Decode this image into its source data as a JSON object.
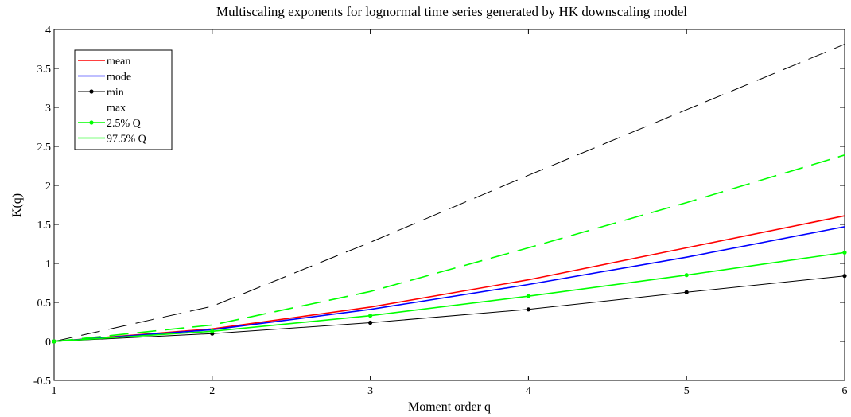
{
  "chart_data": {
    "type": "line",
    "title": "Multiscaling exponents for lognormal time series generated by HK downscaling model",
    "xlabel": "Moment order q",
    "ylabel": "K(q)",
    "xlim": [
      1,
      6
    ],
    "ylim": [
      -0.5,
      4
    ],
    "xticks": [
      "1",
      "2",
      "3",
      "4",
      "5",
      "6"
    ],
    "yticks": [
      "-0.5",
      "0",
      "0.5",
      "1",
      "1.5",
      "2",
      "2.5",
      "3",
      "3.5",
      "4"
    ],
    "grid": false,
    "legend_position": "top-left",
    "x": [
      1,
      2,
      3,
      4,
      5,
      6
    ],
    "series": [
      {
        "name": "mean",
        "values": [
          0,
          0.16,
          0.44,
          0.79,
          1.2,
          1.61
        ],
        "color": "#ff0000",
        "style": "solid",
        "marker": "none"
      },
      {
        "name": "mode",
        "values": [
          0,
          0.15,
          0.41,
          0.73,
          1.08,
          1.47
        ],
        "color": "#0000ff",
        "style": "solid",
        "marker": "none"
      },
      {
        "name": "min",
        "values": [
          0,
          0.1,
          0.24,
          0.41,
          0.63,
          0.84
        ],
        "color": "#000000",
        "style": "solid",
        "marker": "dot"
      },
      {
        "name": "max",
        "values": [
          0,
          0.45,
          1.27,
          2.13,
          2.97,
          3.81
        ],
        "color": "#000000",
        "style": "dashed",
        "marker": "none"
      },
      {
        "name": "2.5% Q",
        "values": [
          0,
          0.13,
          0.33,
          0.58,
          0.85,
          1.14
        ],
        "color": "#00ff00",
        "style": "solid",
        "marker": "dot"
      },
      {
        "name": "97.5% Q",
        "values": [
          0,
          0.21,
          0.64,
          1.2,
          1.78,
          2.39
        ],
        "color": "#00ff00",
        "style": "dashed",
        "marker": "none"
      }
    ]
  }
}
